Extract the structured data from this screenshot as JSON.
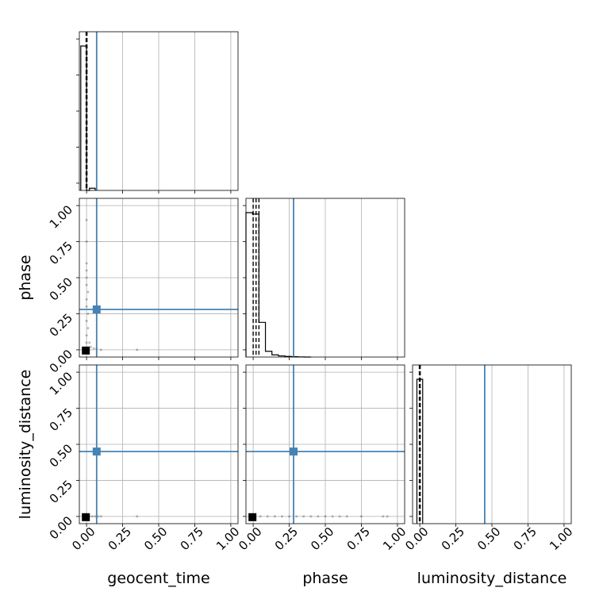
{
  "chart_data": {
    "type": "corner",
    "parameters": [
      "geocent_time",
      "phase",
      "luminosity_distance"
    ],
    "axis_labels": {
      "x": [
        "geocent_time",
        "phase",
        "luminosity_distance"
      ],
      "y": [
        "phase",
        "luminosity_distance"
      ]
    },
    "xlim": [
      -0.05,
      1.05
    ],
    "ylim": [
      -0.05,
      1.05
    ],
    "ticks": [
      0.0,
      0.25,
      0.5,
      0.75,
      1.0
    ],
    "tick_labels": [
      "0.00",
      "0.25",
      "0.50",
      "0.75",
      "1.00"
    ],
    "grid": true,
    "truths": [
      0.07,
      0.28,
      0.45
    ],
    "truth_color": "#4682b4",
    "marginals": [
      {
        "parameter": "geocent_time",
        "bin_edges": [
          -0.04,
          0.0,
          0.02,
          0.06
        ],
        "counts": [
          1.0,
          0.0,
          0.015
        ],
        "quantiles": [
          -0.003,
          0.0,
          0.003
        ]
      },
      {
        "parameter": "phase",
        "bin_edges": [
          -0.05,
          -0.005,
          0.04,
          0.085,
          0.13,
          0.175,
          0.22,
          0.265,
          0.31,
          0.355,
          0.4
        ],
        "counts": [
          1.0,
          0.99,
          0.24,
          0.04,
          0.015,
          0.008,
          0.004,
          0.002,
          0.001,
          0.0
        ],
        "quantiles": [
          0.0,
          0.02,
          0.04
        ]
      },
      {
        "parameter": "luminosity_distance",
        "bin_edges": [
          -0.02,
          0.0,
          0.02
        ],
        "counts": [
          1.0,
          1.0
        ],
        "quantiles": [
          -0.003,
          0.0,
          0.003
        ]
      }
    ],
    "scatter_panels": [
      {
        "x": "geocent_time",
        "y": "phase",
        "points": [
          [
            0.0,
            0.05
          ],
          [
            0.0,
            0.1
          ],
          [
            0.01,
            0.15
          ],
          [
            0.0,
            0.2
          ],
          [
            0.01,
            0.25
          ],
          [
            0.0,
            0.3
          ],
          [
            0.0,
            0.35
          ],
          [
            0.01,
            0.4
          ],
          [
            0.0,
            0.45
          ],
          [
            0.0,
            0.5
          ],
          [
            0.0,
            0.55
          ],
          [
            0.0,
            0.6
          ],
          [
            0.0,
            0.75
          ],
          [
            0.0,
            0.9
          ],
          [
            0.02,
            0.05
          ],
          [
            0.03,
            0.02
          ],
          [
            0.05,
            0.01
          ],
          [
            0.07,
            0.01
          ],
          [
            0.1,
            0.0
          ],
          [
            0.35,
            0.0
          ]
        ],
        "mode_point": [
          -0.005,
          -0.005
        ]
      },
      {
        "x": "geocent_time",
        "y": "luminosity_distance",
        "points": [
          [
            0.02,
            0.0
          ],
          [
            0.04,
            0.0
          ],
          [
            0.06,
            0.0
          ],
          [
            0.08,
            0.0
          ],
          [
            0.1,
            0.0
          ],
          [
            0.35,
            0.0
          ]
        ],
        "mode_point": [
          -0.005,
          -0.005
        ]
      },
      {
        "x": "phase",
        "y": "luminosity_distance",
        "points": [
          [
            0.05,
            0.0
          ],
          [
            0.1,
            0.0
          ],
          [
            0.15,
            0.0
          ],
          [
            0.2,
            0.0
          ],
          [
            0.25,
            0.0
          ],
          [
            0.3,
            0.0
          ],
          [
            0.35,
            0.0
          ],
          [
            0.4,
            0.0
          ],
          [
            0.45,
            0.0
          ],
          [
            0.5,
            0.0
          ],
          [
            0.55,
            0.0
          ],
          [
            0.6,
            0.0
          ],
          [
            0.65,
            0.0
          ],
          [
            0.75,
            0.0
          ],
          [
            0.9,
            0.0
          ],
          [
            0.93,
            0.0
          ]
        ],
        "mode_point": [
          -0.005,
          -0.005
        ]
      }
    ]
  }
}
